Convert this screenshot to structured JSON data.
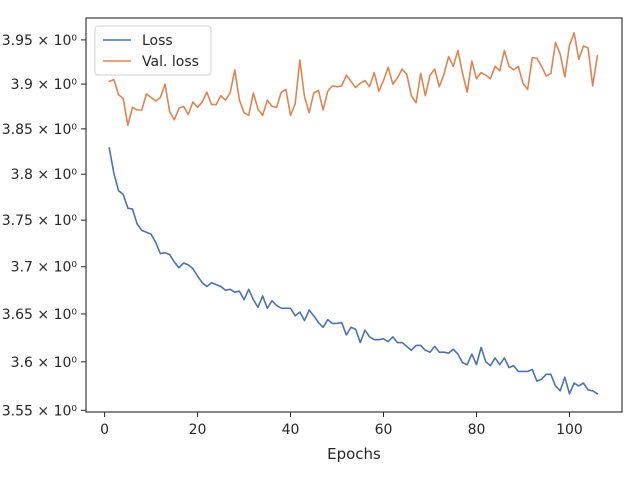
{
  "chart_data": {
    "type": "line",
    "title": "",
    "xlabel": "Epochs",
    "ylabel": "",
    "xlim": [
      -4,
      111.3
    ],
    "ylim": [
      3.5483,
      3.975
    ],
    "y_scale": "log",
    "grid": false,
    "legend_position": "upper-left",
    "x_ticks": [
      0,
      20,
      40,
      60,
      80,
      100
    ],
    "x_tick_labels": [
      "0",
      "20",
      "40",
      "60",
      "80",
      "100"
    ],
    "y_ticks": [
      3.55,
      3.6,
      3.65,
      3.7,
      3.75,
      3.8,
      3.85,
      3.9,
      3.95
    ],
    "y_tick_labels": [
      "3.55 × 10⁰",
      "3.6 × 10⁰",
      "3.65 × 10⁰",
      "3.7 × 10⁰",
      "3.75 × 10⁰",
      "3.8 × 10⁰",
      "3.85 × 10⁰",
      "3.9 × 10⁰",
      "3.95 × 10⁰"
    ],
    "x_start": 1,
    "x_step": 1,
    "series": [
      {
        "name": "Loss",
        "color": "#4c72b0",
        "values": [
          3.829,
          3.801,
          3.782,
          3.778,
          3.763,
          3.762,
          3.746,
          3.739,
          3.737,
          3.735,
          3.726,
          3.714,
          3.715,
          3.713,
          3.705,
          3.699,
          3.704,
          3.702,
          3.698,
          3.69,
          3.683,
          3.679,
          3.683,
          3.681,
          3.679,
          3.675,
          3.676,
          3.673,
          3.674,
          3.665,
          3.676,
          3.665,
          3.657,
          3.669,
          3.656,
          3.664,
          3.659,
          3.656,
          3.656,
          3.656,
          3.648,
          3.652,
          3.643,
          3.654,
          3.648,
          3.641,
          3.636,
          3.644,
          3.64,
          3.64,
          3.641,
          3.628,
          3.636,
          3.634,
          3.62,
          3.633,
          3.626,
          3.623,
          3.623,
          3.624,
          3.621,
          3.626,
          3.62,
          3.62,
          3.616,
          3.612,
          3.617,
          3.617,
          3.612,
          3.61,
          3.616,
          3.61,
          3.61,
          3.609,
          3.613,
          3.608,
          3.599,
          3.597,
          3.608,
          3.597,
          3.615,
          3.6,
          3.596,
          3.604,
          3.597,
          3.604,
          3.594,
          3.596,
          3.59,
          3.59,
          3.59,
          3.592,
          3.58,
          3.582,
          3.587,
          3.587,
          3.575,
          3.57,
          3.584,
          3.567,
          3.578,
          3.575,
          3.578,
          3.571,
          3.57,
          3.567
        ]
      },
      {
        "name": "Val. loss",
        "color": "#dd8452",
        "values": [
          3.903,
          3.905,
          3.888,
          3.884,
          3.854,
          3.874,
          3.871,
          3.871,
          3.889,
          3.885,
          3.881,
          3.885,
          3.9,
          3.869,
          3.86,
          3.873,
          3.875,
          3.866,
          3.88,
          3.874,
          3.88,
          3.891,
          3.877,
          3.877,
          3.887,
          3.882,
          3.89,
          3.916,
          3.882,
          3.868,
          3.865,
          3.89,
          3.872,
          3.865,
          3.882,
          3.875,
          3.874,
          3.891,
          3.894,
          3.865,
          3.878,
          3.927,
          3.886,
          3.868,
          3.89,
          3.893,
          3.871,
          3.892,
          3.898,
          3.897,
          3.898,
          3.91,
          3.903,
          3.896,
          3.901,
          3.904,
          3.897,
          3.913,
          3.892,
          3.904,
          3.919,
          3.9,
          3.907,
          3.917,
          3.911,
          3.887,
          3.879,
          3.912,
          3.887,
          3.91,
          3.917,
          3.897,
          3.911,
          3.931,
          3.92,
          3.938,
          3.912,
          3.891,
          3.926,
          3.906,
          3.913,
          3.91,
          3.906,
          3.92,
          3.915,
          3.938,
          3.92,
          3.916,
          3.92,
          3.901,
          3.894,
          3.93,
          3.929,
          3.92,
          3.909,
          3.912,
          3.947,
          3.934,
          3.908,
          3.944,
          3.958,
          3.928,
          3.943,
          3.941,
          3.898,
          3.932
        ]
      }
    ]
  }
}
